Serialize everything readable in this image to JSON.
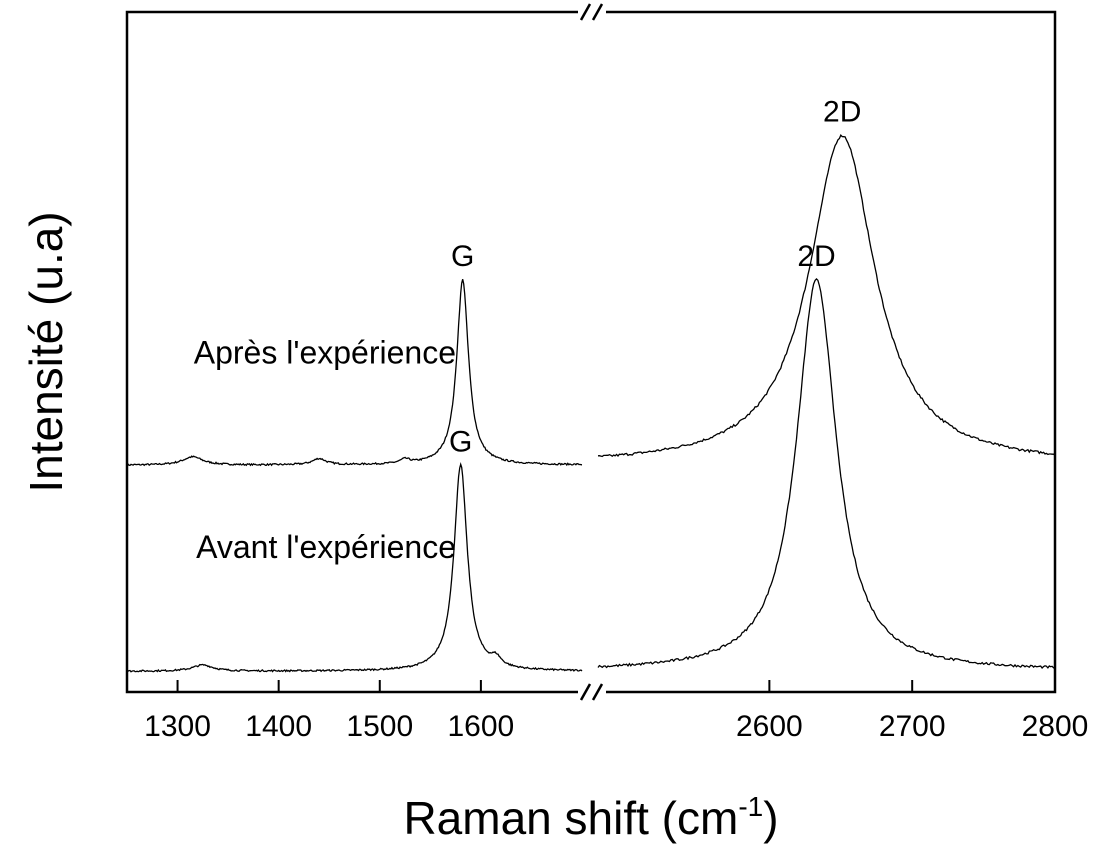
{
  "chart_data": {
    "type": "line",
    "xlabel": "Raman shift (cm",
    "xlabel_superscript": "-1",
    "xlabel_close": ")",
    "ylabel": "Intensité (u.a)",
    "broken_axis": true,
    "x_segments": [
      {
        "xlim": [
          1250,
          1700
        ],
        "ticks": [
          "1300",
          "1400",
          "1500",
          "1600"
        ]
      },
      {
        "xlim": [
          2480,
          2800
        ],
        "ticks": [
          "2600",
          "2700",
          "2800"
        ]
      }
    ],
    "series": [
      {
        "name": "Après l'expérience",
        "offset": 1.0,
        "peaks": [
          {
            "label": "G",
            "x": 1582,
            "height": 0.9,
            "width": 7
          },
          {
            "label": "2D",
            "x": 2651,
            "height": 1.6,
            "width": 28
          }
        ],
        "minor_bumps": [
          {
            "x": 1315,
            "height": 0.04,
            "width": 12
          },
          {
            "x": 1440,
            "height": 0.03,
            "width": 8
          },
          {
            "x": 1525,
            "height": 0.02,
            "width": 6
          }
        ]
      },
      {
        "name": "Avant l'expérience",
        "offset": 0.0,
        "peaks": [
          {
            "label": "G",
            "x": 1580,
            "height": 1.0,
            "width": 8
          },
          {
            "label": "2D",
            "x": 2633,
            "height": 1.9,
            "width": 17
          }
        ],
        "minor_bumps": [
          {
            "x": 1325,
            "height": 0.03,
            "width": 12
          },
          {
            "x": 1615,
            "height": 0.04,
            "width": 6
          }
        ]
      }
    ],
    "ylim": [
      -0.1,
      3.2
    ],
    "grid": false,
    "legend": "none"
  }
}
